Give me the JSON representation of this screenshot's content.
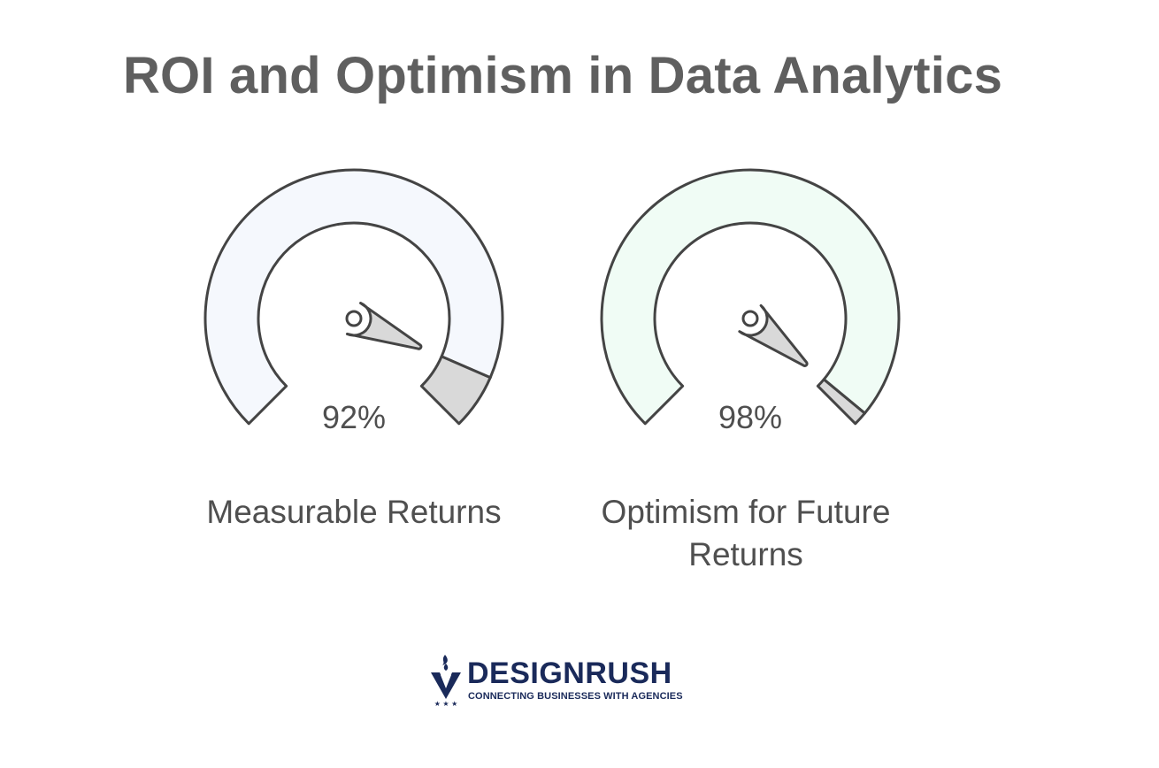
{
  "title": "ROI and Optimism in Data Analytics",
  "chart_data": {
    "type": "gauge",
    "title": "ROI and Optimism in Data Analytics",
    "unit": "%",
    "range": [
      0,
      100
    ],
    "gauges": [
      {
        "label": "Measurable Returns",
        "value": 92,
        "value_label": "92%",
        "fill_color": "#f5f8fd",
        "remainder_color": "#d9d9d9"
      },
      {
        "label": "Optimism for Future Returns",
        "value": 98,
        "value_label": "98%",
        "fill_color": "#f0fcf5",
        "remainder_color": "#d9d9d9"
      }
    ]
  },
  "logo": {
    "name": "DESIGNRUSH",
    "tagline": "CONNECTING BUSINESSES WITH AGENCIES",
    "icon": "designrush-logo-icon",
    "color": "#1a2a5a"
  }
}
